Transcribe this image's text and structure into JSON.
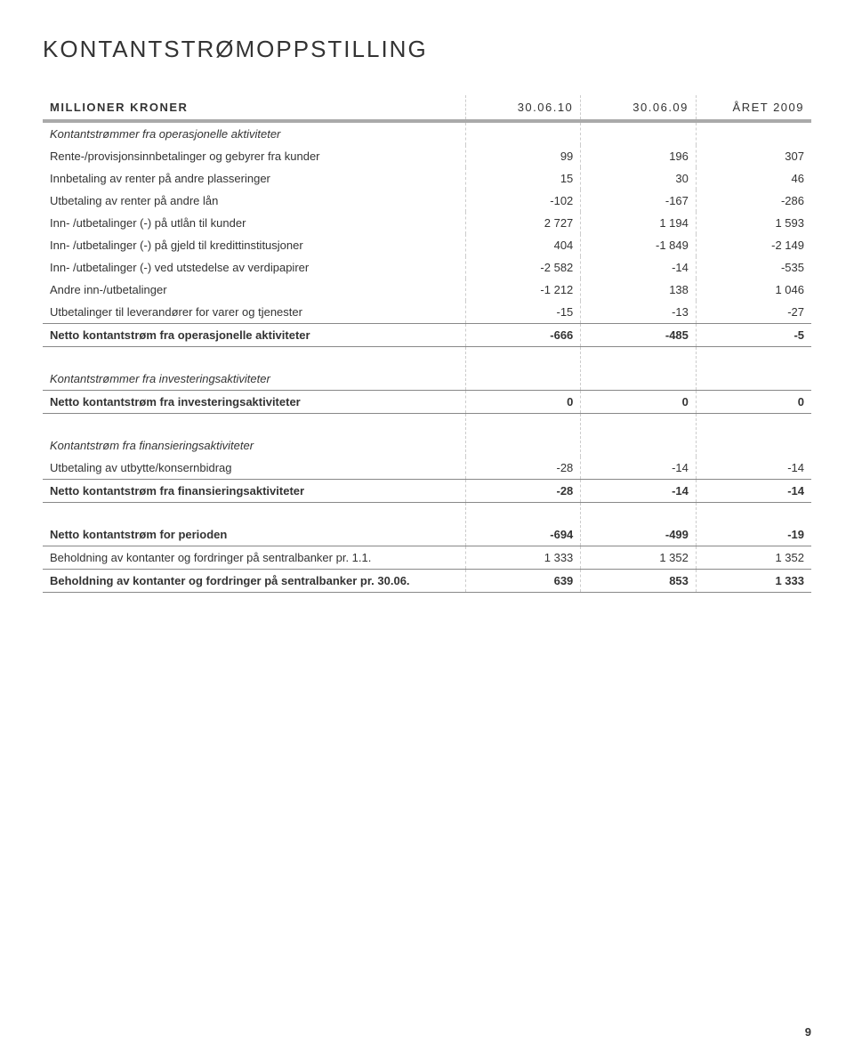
{
  "title": "KONTANTSTRØMOPPSTILLING",
  "header": {
    "label": "MILLIONER KRONER",
    "col1": "30.06.10",
    "col2": "30.06.09",
    "col3": "ÅRET 2009"
  },
  "sections": [
    {
      "heading": "Kontantstrømmer fra operasjonelle aktiviteter",
      "rows": [
        {
          "label": "Rente-/provisjonsinnbetalinger og gebyrer fra kunder",
          "v": [
            "99",
            "196",
            "307"
          ]
        },
        {
          "label": "Innbetaling av renter på andre plasseringer",
          "v": [
            "15",
            "30",
            "46"
          ]
        },
        {
          "label": "Utbetaling av renter på andre lån",
          "v": [
            "-102",
            "-167",
            "-286"
          ]
        },
        {
          "label": "Inn- /utbetalinger (-) på utlån til kunder",
          "v": [
            "2 727",
            "1 194",
            "1 593"
          ]
        },
        {
          "label": "Inn- /utbetalinger (-) på gjeld til kredittinstitusjoner",
          "v": [
            "404",
            "-1 849",
            "-2 149"
          ]
        },
        {
          "label": "Inn- /utbetalinger (-) ved utstedelse av verdipapirer",
          "v": [
            "-2 582",
            "-14",
            "-535"
          ]
        },
        {
          "label": "Andre inn-/utbetalinger",
          "v": [
            "-1 212",
            "138",
            "1 046"
          ]
        },
        {
          "label": "Utbetalinger til leverandører for varer og tjenester",
          "v": [
            "-15",
            "-13",
            "-27"
          ]
        }
      ],
      "total": {
        "label": "Netto kontantstrøm fra operasjonelle aktiviteter",
        "v": [
          "-666",
          "-485",
          "-5"
        ]
      }
    },
    {
      "heading": "Kontantstrømmer fra investeringsaktiviteter",
      "rows": [],
      "total": {
        "label": "Netto kontantstrøm fra investeringsaktiviteter",
        "v": [
          "0",
          "0",
          "0"
        ]
      }
    },
    {
      "heading": "Kontantstrøm fra finansieringsaktiviteter",
      "rows": [
        {
          "label": "Utbetaling av utbytte/konsernbidrag",
          "v": [
            "-28",
            "-14",
            "-14"
          ]
        }
      ],
      "total": {
        "label": "Netto kontantstrøm fra finansieringsaktiviteter",
        "v": [
          "-28",
          "-14",
          "-14"
        ]
      }
    }
  ],
  "summary": [
    {
      "label": "Netto kontantstrøm for perioden",
      "v": [
        "-694",
        "-499",
        "-19"
      ],
      "bold": true,
      "lineAbove": false,
      "lineBelow": true
    },
    {
      "label": "Beholdning av kontanter og fordringer på sentralbanker pr. 1.1.",
      "v": [
        "1 333",
        "1 352",
        "1 352"
      ],
      "bold": false,
      "lineAbove": false,
      "lineBelow": false
    },
    {
      "label": "Beholdning av kontanter og fordringer på sentralbanker pr. 30.06.",
      "v": [
        "639",
        "853",
        "1 333"
      ],
      "bold": true,
      "lineAbove": true,
      "lineBelow": true
    }
  ],
  "page_number": "9",
  "style": {
    "background": "#ffffff",
    "text_color": "#333333",
    "divider_color": "#cccccc",
    "header_rule_color": "#aaaaaa",
    "row_line_color": "#888888",
    "title_fontsize": 26,
    "body_fontsize": 13
  }
}
